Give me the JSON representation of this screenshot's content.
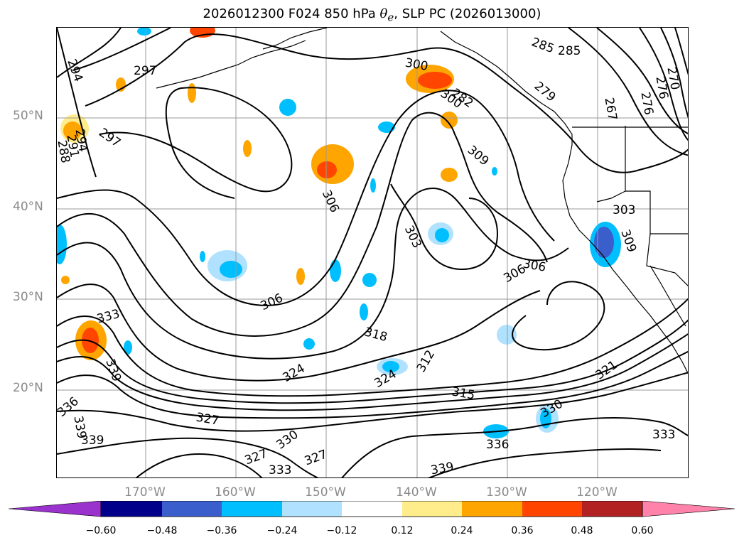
{
  "title": {
    "prefix": "2026012300 F024 850 hPa ",
    "symbol": "θ",
    "subscript": "e",
    "suffix": ", SLP PC (2026013000)"
  },
  "axes": {
    "lat_labels": [
      "50°N",
      "40°N",
      "30°N",
      "20°N"
    ],
    "lon_labels": [
      "170°W",
      "160°W",
      "150°W",
      "140°W",
      "130°W",
      "120°W"
    ],
    "grid": true,
    "coastlines": true
  },
  "colorbar": {
    "ticks": [
      "−0.60",
      "−0.48",
      "−0.36",
      "−0.24",
      "−0.12",
      "0.12",
      "0.24",
      "0.36",
      "0.48",
      "0.60"
    ],
    "colors": [
      "#9a32cd",
      "#00008b",
      "#3a5fcd",
      "#00bfff",
      "#b0e2ff",
      "#ffffff",
      "#ffec8b",
      "#ffa500",
      "#ff4500",
      "#b22222",
      "#ff82ab"
    ],
    "extend": "both"
  },
  "contour_labels": [
    "294",
    "297",
    "300",
    "282",
    "285",
    "285",
    "279",
    "267",
    "270",
    "276",
    "276",
    "297",
    "288",
    "291",
    "294",
    "300",
    "309",
    "306",
    "303",
    "303",
    "306",
    "306",
    "309",
    "306",
    "333",
    "339",
    "336",
    "339",
    "339",
    "327",
    "330",
    "327",
    "327",
    "333",
    "324",
    "318",
    "312",
    "324",
    "315",
    "330",
    "321",
    "336",
    "333",
    "339"
  ]
}
